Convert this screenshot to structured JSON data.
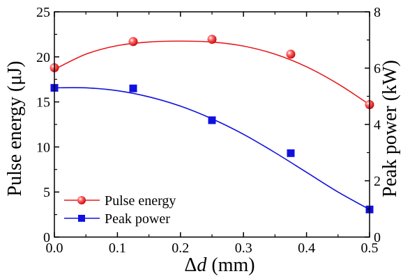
{
  "chart_data": {
    "type": "line",
    "title": "",
    "xlabel": "Δd (mm)",
    "xlabel_parts": {
      "delta": "Δ",
      "var": "d",
      "unit": " (mm)"
    },
    "ylabel_left": "Pulse energy (μJ)",
    "ylabel_right": "Peak power (kW)",
    "xlim": [
      0.0,
      0.5
    ],
    "ylim_left": [
      0,
      25
    ],
    "ylim_right": [
      0,
      8
    ],
    "x_ticks": [
      "0.0",
      "0.1",
      "0.2",
      "0.3",
      "0.4",
      "0.5"
    ],
    "y_left_ticks": [
      "0",
      "5",
      "10",
      "15",
      "20",
      "25"
    ],
    "y_right_ticks": [
      "0",
      "2",
      "4",
      "6",
      "8"
    ],
    "grid": false,
    "legend_position": "bottom-left",
    "series": [
      {
        "name": "Pulse energy",
        "axis": "left",
        "marker": "circle",
        "color": "#e8191c",
        "x": [
          0.0,
          0.125,
          0.25,
          0.375,
          0.5
        ],
        "values": [
          18.8,
          21.7,
          21.95,
          20.3,
          14.7
        ],
        "fit_curve": [
          [
            0.0,
            18.6
          ],
          [
            0.05,
            20.3
          ],
          [
            0.1,
            21.25
          ],
          [
            0.15,
            21.65
          ],
          [
            0.2,
            21.75
          ],
          [
            0.25,
            21.65
          ],
          [
            0.3,
            21.2
          ],
          [
            0.35,
            20.3
          ],
          [
            0.4,
            18.9
          ],
          [
            0.45,
            17.0
          ],
          [
            0.5,
            14.7
          ]
        ]
      },
      {
        "name": "Peak power",
        "axis": "right",
        "marker": "square",
        "color": "#1010e0",
        "x": [
          0.0,
          0.125,
          0.25,
          0.375,
          0.5
        ],
        "values": [
          5.3,
          5.28,
          4.15,
          2.98,
          0.98
        ],
        "fit_curve": [
          [
            0.0,
            5.3
          ],
          [
            0.05,
            5.3
          ],
          [
            0.1,
            5.2
          ],
          [
            0.15,
            4.98
          ],
          [
            0.2,
            4.65
          ],
          [
            0.25,
            4.2
          ],
          [
            0.3,
            3.65
          ],
          [
            0.35,
            3.0
          ],
          [
            0.4,
            2.3
          ],
          [
            0.45,
            1.6
          ],
          [
            0.5,
            0.98
          ]
        ]
      }
    ]
  }
}
